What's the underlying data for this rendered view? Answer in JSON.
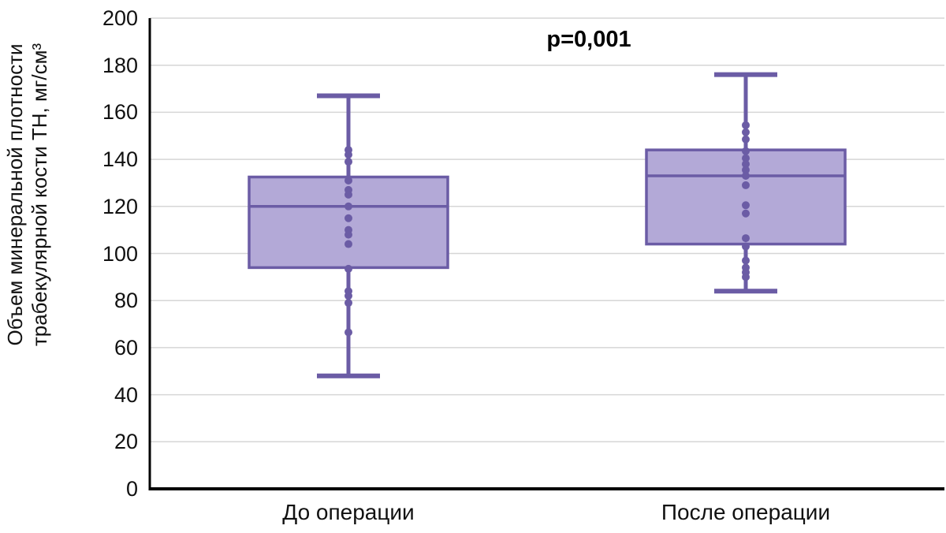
{
  "chart_data": {
    "type": "boxplot",
    "title": "",
    "annotation": "p=0,001",
    "ylabel_lines": [
      "Объем минеральной плотности",
      "трабекулярной кости TH, мг/см³"
    ],
    "xlabel": "",
    "categories": [
      "До операции",
      "После операции"
    ],
    "ylim": [
      0,
      200
    ],
    "yticks": [
      0,
      20,
      40,
      60,
      80,
      100,
      120,
      140,
      160,
      180,
      200
    ],
    "grid": "horizontal-gray-lines",
    "legend": "none",
    "series": [
      {
        "name": "До операции",
        "whisker_low": 48,
        "q1": 94,
        "median": 120,
        "q3": 132.5,
        "whisker_high": 167,
        "points": [
          144,
          142,
          139,
          131,
          127,
          125,
          120,
          115,
          110,
          108,
          104,
          93.5,
          84,
          82,
          79,
          66.5
        ]
      },
      {
        "name": "После операции",
        "whisker_low": 84,
        "q1": 104,
        "median": 133,
        "q3": 144,
        "whisker_high": 176,
        "points": [
          154.5,
          151.5,
          148.5,
          143.5,
          140.5,
          138,
          135.5,
          133,
          129,
          120.5,
          117,
          106.5,
          103,
          97,
          94,
          92,
          90
        ]
      }
    ],
    "colors": {
      "box_fill": "#B3A9D7",
      "box_stroke": "#6B5CA5",
      "point": "#6B5CA5",
      "gridline": "#D6D6D6",
      "axis": "#000000",
      "text": "#111111"
    }
  }
}
